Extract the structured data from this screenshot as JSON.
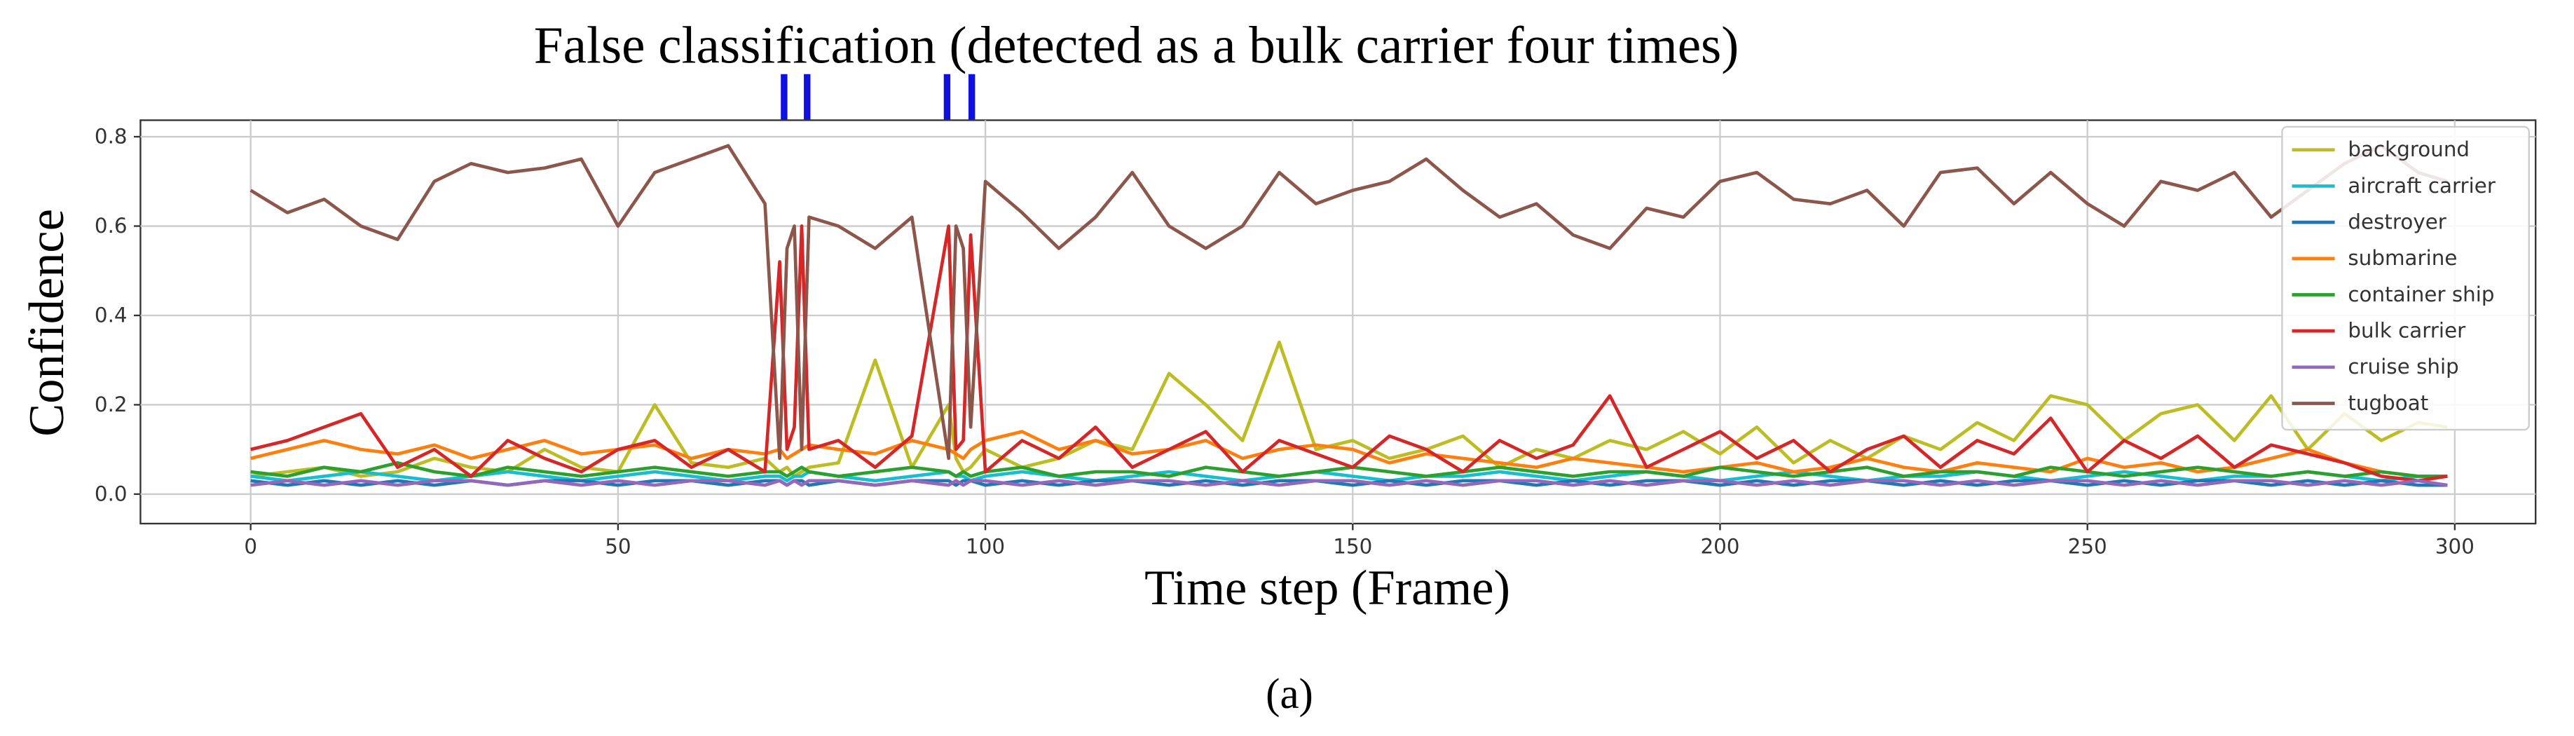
{
  "chart_data": {
    "type": "line",
    "annotation": "False classification (detected as a bulk carrier four times)",
    "xlabel": "Time step (Frame)",
    "ylabel": "Confidence",
    "caption": "(a)",
    "x": [
      0,
      5,
      10,
      15,
      20,
      25,
      30,
      35,
      40,
      45,
      50,
      55,
      60,
      65,
      70,
      72,
      73,
      74,
      75,
      76,
      80,
      85,
      90,
      95,
      96,
      97,
      98,
      100,
      105,
      110,
      115,
      120,
      125,
      130,
      135,
      140,
      145,
      150,
      155,
      160,
      165,
      170,
      175,
      180,
      185,
      190,
      195,
      200,
      205,
      210,
      215,
      220,
      225,
      230,
      235,
      240,
      245,
      250,
      255,
      260,
      265,
      270,
      275,
      280,
      285,
      290,
      295,
      299
    ],
    "xlim": [
      -15,
      311
    ],
    "xticks": [
      0,
      50,
      100,
      150,
      200,
      250,
      300
    ],
    "ylim": [
      -0.066,
      0.837
    ],
    "yticks": [
      {
        "value": 0,
        "label": "0.0"
      },
      {
        "value": 0.2,
        "label": "0.2"
      },
      {
        "value": 0.4,
        "label": "0.4"
      },
      {
        "value": 0.6,
        "label": "0.6"
      },
      {
        "value": 0.8,
        "label": "0.8"
      }
    ],
    "grid": true,
    "legend": "upper right",
    "series": [
      {
        "name": "background",
        "color": "#bcbd22",
        "values": [
          0.04,
          0.05,
          0.06,
          0.04,
          0.05,
          0.08,
          0.06,
          0.05,
          0.1,
          0.06,
          0.05,
          0.2,
          0.07,
          0.06,
          0.08,
          0.05,
          0.06,
          0.04,
          0.05,
          0.06,
          0.07,
          0.3,
          0.06,
          0.2,
          0.08,
          0.05,
          0.06,
          0.1,
          0.06,
          0.08,
          0.12,
          0.1,
          0.27,
          0.2,
          0.12,
          0.34,
          0.1,
          0.12,
          0.08,
          0.1,
          0.13,
          0.06,
          0.1,
          0.08,
          0.12,
          0.1,
          0.14,
          0.09,
          0.15,
          0.07,
          0.12,
          0.08,
          0.13,
          0.1,
          0.16,
          0.12,
          0.22,
          0.2,
          0.12,
          0.18,
          0.2,
          0.12,
          0.22,
          0.1,
          0.18,
          0.12,
          0.16,
          0.15
        ]
      },
      {
        "name": "aircraft carrier",
        "color": "#17becf",
        "values": [
          0.04,
          0.03,
          0.04,
          0.05,
          0.04,
          0.03,
          0.04,
          0.05,
          0.04,
          0.03,
          0.04,
          0.05,
          0.04,
          0.03,
          0.04,
          0.04,
          0.03,
          0.04,
          0.04,
          0.05,
          0.04,
          0.03,
          0.04,
          0.05,
          0.04,
          0.04,
          0.03,
          0.04,
          0.05,
          0.04,
          0.03,
          0.04,
          0.05,
          0.04,
          0.03,
          0.04,
          0.05,
          0.04,
          0.03,
          0.04,
          0.04,
          0.05,
          0.04,
          0.03,
          0.04,
          0.05,
          0.04,
          0.03,
          0.04,
          0.05,
          0.04,
          0.03,
          0.04,
          0.04,
          0.05,
          0.04,
          0.03,
          0.04,
          0.05,
          0.04,
          0.03,
          0.04,
          0.04,
          0.05,
          0.04,
          0.03,
          0.04,
          0.04
        ]
      },
      {
        "name": "destroyer",
        "color": "#1f77b4",
        "values": [
          0.03,
          0.02,
          0.03,
          0.02,
          0.03,
          0.02,
          0.03,
          0.02,
          0.03,
          0.03,
          0.02,
          0.03,
          0.03,
          0.02,
          0.03,
          0.03,
          0.02,
          0.03,
          0.03,
          0.02,
          0.03,
          0.02,
          0.03,
          0.03,
          0.02,
          0.03,
          0.03,
          0.02,
          0.03,
          0.02,
          0.03,
          0.03,
          0.02,
          0.03,
          0.02,
          0.03,
          0.03,
          0.02,
          0.03,
          0.02,
          0.03,
          0.03,
          0.02,
          0.03,
          0.02,
          0.03,
          0.03,
          0.02,
          0.03,
          0.02,
          0.03,
          0.03,
          0.02,
          0.03,
          0.02,
          0.03,
          0.03,
          0.02,
          0.03,
          0.02,
          0.03,
          0.03,
          0.02,
          0.03,
          0.02,
          0.03,
          0.02,
          0.02
        ]
      },
      {
        "name": "submarine",
        "color": "#ff7f0e",
        "values": [
          0.08,
          0.1,
          0.12,
          0.1,
          0.09,
          0.11,
          0.08,
          0.1,
          0.12,
          0.09,
          0.1,
          0.11,
          0.08,
          0.1,
          0.09,
          0.1,
          0.08,
          0.09,
          0.1,
          0.11,
          0.1,
          0.09,
          0.12,
          0.1,
          0.09,
          0.08,
          0.1,
          0.12,
          0.14,
          0.1,
          0.12,
          0.09,
          0.1,
          0.12,
          0.08,
          0.1,
          0.11,
          0.1,
          0.07,
          0.09,
          0.08,
          0.07,
          0.06,
          0.08,
          0.07,
          0.06,
          0.05,
          0.06,
          0.07,
          0.05,
          0.06,
          0.08,
          0.06,
          0.05,
          0.07,
          0.06,
          0.05,
          0.08,
          0.06,
          0.07,
          0.05,
          0.06,
          0.08,
          0.1,
          0.07,
          0.05,
          0.04,
          0.04
        ]
      },
      {
        "name": "container ship",
        "color": "#2ca02c",
        "values": [
          0.05,
          0.04,
          0.06,
          0.05,
          0.07,
          0.05,
          0.04,
          0.06,
          0.05,
          0.04,
          0.05,
          0.06,
          0.05,
          0.04,
          0.05,
          0.05,
          0.04,
          0.05,
          0.06,
          0.05,
          0.04,
          0.05,
          0.06,
          0.05,
          0.04,
          0.05,
          0.04,
          0.05,
          0.06,
          0.04,
          0.05,
          0.05,
          0.04,
          0.06,
          0.05,
          0.04,
          0.05,
          0.06,
          0.05,
          0.04,
          0.05,
          0.06,
          0.05,
          0.04,
          0.05,
          0.05,
          0.04,
          0.06,
          0.05,
          0.04,
          0.05,
          0.06,
          0.04,
          0.05,
          0.05,
          0.04,
          0.06,
          0.05,
          0.04,
          0.05,
          0.06,
          0.05,
          0.04,
          0.05,
          0.04,
          0.05,
          0.04,
          0.04
        ]
      },
      {
        "name": "bulk carrier",
        "color": "#d62728",
        "values": [
          0.1,
          0.12,
          0.15,
          0.18,
          0.06,
          0.1,
          0.04,
          0.12,
          0.08,
          0.05,
          0.1,
          0.12,
          0.06,
          0.1,
          0.05,
          0.52,
          0.1,
          0.15,
          0.6,
          0.1,
          0.12,
          0.06,
          0.13,
          0.6,
          0.1,
          0.12,
          0.58,
          0.05,
          0.12,
          0.08,
          0.15,
          0.06,
          0.1,
          0.14,
          0.05,
          0.12,
          0.09,
          0.06,
          0.13,
          0.1,
          0.05,
          0.12,
          0.08,
          0.11,
          0.22,
          0.06,
          0.1,
          0.14,
          0.08,
          0.12,
          0.05,
          0.1,
          0.13,
          0.06,
          0.12,
          0.09,
          0.17,
          0.05,
          0.12,
          0.08,
          0.13,
          0.06,
          0.11,
          0.09,
          0.07,
          0.04,
          0.03,
          0.04
        ]
      },
      {
        "name": "cruise ship",
        "color": "#9467bd",
        "values": [
          0.02,
          0.03,
          0.02,
          0.03,
          0.02,
          0.03,
          0.03,
          0.02,
          0.03,
          0.02,
          0.03,
          0.02,
          0.03,
          0.03,
          0.02,
          0.03,
          0.02,
          0.03,
          0.02,
          0.03,
          0.03,
          0.02,
          0.03,
          0.02,
          0.03,
          0.02,
          0.03,
          0.03,
          0.02,
          0.03,
          0.02,
          0.03,
          0.03,
          0.02,
          0.03,
          0.02,
          0.03,
          0.03,
          0.02,
          0.03,
          0.02,
          0.03,
          0.03,
          0.02,
          0.03,
          0.02,
          0.03,
          0.03,
          0.02,
          0.03,
          0.02,
          0.03,
          0.03,
          0.02,
          0.03,
          0.02,
          0.03,
          0.03,
          0.02,
          0.03,
          0.02,
          0.03,
          0.03,
          0.02,
          0.03,
          0.02,
          0.03,
          0.02
        ]
      },
      {
        "name": "tugboat",
        "color": "#8c564b",
        "values": [
          0.68,
          0.63,
          0.66,
          0.6,
          0.57,
          0.7,
          0.74,
          0.72,
          0.73,
          0.75,
          0.6,
          0.72,
          0.75,
          0.78,
          0.65,
          0.08,
          0.55,
          0.6,
          0.1,
          0.62,
          0.6,
          0.55,
          0.62,
          0.08,
          0.6,
          0.55,
          0.15,
          0.7,
          0.63,
          0.55,
          0.62,
          0.72,
          0.6,
          0.55,
          0.6,
          0.72,
          0.65,
          0.68,
          0.7,
          0.75,
          0.68,
          0.62,
          0.65,
          0.58,
          0.55,
          0.64,
          0.62,
          0.7,
          0.72,
          0.66,
          0.65,
          0.68,
          0.6,
          0.72,
          0.73,
          0.65,
          0.72,
          0.65,
          0.6,
          0.7,
          0.68,
          0.72,
          0.62,
          0.68,
          0.74,
          0.78,
          0.72,
          0.7
        ]
      }
    ]
  }
}
